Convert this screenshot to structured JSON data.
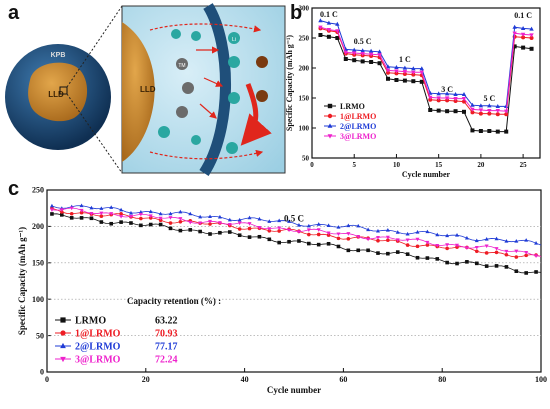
{
  "panels": {
    "a": {
      "letter": "a",
      "labels": {
        "kpb": "KPB",
        "lld_small": "LLD",
        "lld_large": "LLD",
        "tm": "TM",
        "li": "Li"
      }
    },
    "b": {
      "letter": "b"
    },
    "c": {
      "letter": "c"
    }
  },
  "colors": {
    "LRMO": "#111111",
    "1@LRMO": "#ee1c24",
    "2@LRMO": "#1f3bd6",
    "3@LRMO": "#ee22cc",
    "particle_shell": "#1f4f7a",
    "particle_core": "#c98a2a",
    "zoom_bg": "#bfe0ee",
    "li_ion": "#2aa7a1",
    "tm_ion": "#6b6b6b",
    "arrow_red": "#e0261c"
  },
  "chart_data": [
    {
      "id": "b",
      "type": "line",
      "xlabel": "Cycle number",
      "ylabel": "Specific Capacity (mAh g⁻¹)",
      "xlim": [
        0,
        27
      ],
      "ylim": [
        50,
        300
      ],
      "xticks": [
        0,
        5,
        10,
        15,
        20,
        25
      ],
      "yticks": [
        50,
        100,
        150,
        200,
        250,
        300
      ],
      "legend_position": "bottom-left",
      "rate_labels": [
        {
          "text": "0.1 C",
          "x": 2,
          "y": 285
        },
        {
          "text": "0.5 C",
          "x": 6,
          "y": 240
        },
        {
          "text": "1 C",
          "x": 11,
          "y": 210
        },
        {
          "text": "3 C",
          "x": 16,
          "y": 160
        },
        {
          "text": "5 C",
          "x": 21,
          "y": 145
        },
        {
          "text": "0.1 C",
          "x": 25,
          "y": 283
        }
      ],
      "series": [
        {
          "name": "LRMO",
          "marker": "square",
          "values": [
            [
              1,
              255
            ],
            [
              2,
              252
            ],
            [
              3,
              250
            ],
            [
              4,
              215
            ],
            [
              5,
              213
            ],
            [
              6,
              211
            ],
            [
              7,
              210
            ],
            [
              8,
              208
            ],
            [
              9,
              182
            ],
            [
              10,
              180
            ],
            [
              11,
              179
            ],
            [
              12,
              178
            ],
            [
              13,
              177
            ],
            [
              14,
              130
            ],
            [
              15,
              129
            ],
            [
              16,
              128
            ],
            [
              17,
              128
            ],
            [
              18,
              127
            ],
            [
              19,
              96
            ],
            [
              20,
              95
            ],
            [
              21,
              95
            ],
            [
              22,
              94
            ],
            [
              23,
              94
            ],
            [
              24,
              236
            ],
            [
              25,
              234
            ],
            [
              26,
              232
            ]
          ]
        },
        {
          "name": "1@LRMO",
          "marker": "circle",
          "values": [
            [
              1,
              266
            ],
            [
              2,
              262
            ],
            [
              3,
              260
            ],
            [
              4,
              224
            ],
            [
              5,
              222
            ],
            [
              6,
              221
            ],
            [
              7,
              220
            ],
            [
              8,
              218
            ],
            [
              9,
              192
            ],
            [
              10,
              191
            ],
            [
              11,
              190
            ],
            [
              12,
              189
            ],
            [
              13,
              188
            ],
            [
              14,
              147
            ],
            [
              15,
              146
            ],
            [
              16,
              146
            ],
            [
              17,
              145
            ],
            [
              18,
              144
            ],
            [
              19,
              126
            ],
            [
              20,
              124
            ],
            [
              21,
              124
            ],
            [
              22,
              123
            ],
            [
              23,
              123
            ],
            [
              24,
              252
            ],
            [
              25,
              251
            ],
            [
              26,
              250
            ]
          ]
        },
        {
          "name": "2@LRMO",
          "marker": "triangle",
          "values": [
            [
              1,
              279
            ],
            [
              2,
              275
            ],
            [
              3,
              273
            ],
            [
              4,
              231
            ],
            [
              5,
              230
            ],
            [
              6,
              229
            ],
            [
              7,
              228
            ],
            [
              8,
              227
            ],
            [
              9,
              202
            ],
            [
              10,
              201
            ],
            [
              11,
              200
            ],
            [
              12,
              199
            ],
            [
              13,
              199
            ],
            [
              14,
              158
            ],
            [
              15,
              157
            ],
            [
              16,
              157
            ],
            [
              17,
              156
            ],
            [
              18,
              156
            ],
            [
              19,
              138
            ],
            [
              20,
              137
            ],
            [
              21,
              137
            ],
            [
              22,
              136
            ],
            [
              23,
              136
            ],
            [
              24,
              268
            ],
            [
              25,
              266
            ],
            [
              26,
              265
            ]
          ]
        },
        {
          "name": "3@LRMO",
          "marker": "triangle-down",
          "values": [
            [
              1,
              268
            ],
            [
              2,
              264
            ],
            [
              3,
              262
            ],
            [
              4,
              226
            ],
            [
              5,
              225
            ],
            [
              6,
              224
            ],
            [
              7,
              223
            ],
            [
              8,
              222
            ],
            [
              9,
              196
            ],
            [
              10,
              195
            ],
            [
              11,
              194
            ],
            [
              12,
              193
            ],
            [
              13,
              193
            ],
            [
              14,
              151
            ],
            [
              15,
              150
            ],
            [
              16,
              150
            ],
            [
              17,
              149
            ],
            [
              18,
              149
            ],
            [
              19,
              131
            ],
            [
              20,
              130
            ],
            [
              21,
              129
            ],
            [
              22,
              129
            ],
            [
              23,
              128
            ],
            [
              24,
              258
            ],
            [
              25,
              256
            ],
            [
              26,
              255
            ]
          ]
        }
      ]
    },
    {
      "id": "c",
      "type": "line",
      "xlabel": "Cycle number",
      "ylabel": "Specific Capacity (mAh g⁻¹)",
      "xlim": [
        0,
        100
      ],
      "ylim": [
        0,
        250
      ],
      "xticks": [
        0,
        20,
        40,
        60,
        80,
        100
      ],
      "yticks": [
        0,
        50,
        100,
        150,
        200,
        250
      ],
      "rate_label": {
        "text": "0.5 C",
        "x": 50,
        "y": 207
      },
      "retention_title": "Capacity retention (%) :",
      "legend_position": "bottom-left",
      "series": [
        {
          "name": "LRMO",
          "marker": "square",
          "retention": "63.22",
          "start": 215,
          "end": 136
        },
        {
          "name": "1@LRMO",
          "marker": "circle",
          "retention": "70.93",
          "start": 222,
          "end": 157
        },
        {
          "name": "2@LRMO",
          "marker": "triangle",
          "retention": "77.17",
          "start": 229,
          "end": 176
        },
        {
          "name": "3@LRMO",
          "marker": "triangle-down",
          "retention": "72.24",
          "start": 224,
          "end": 162
        }
      ]
    }
  ]
}
